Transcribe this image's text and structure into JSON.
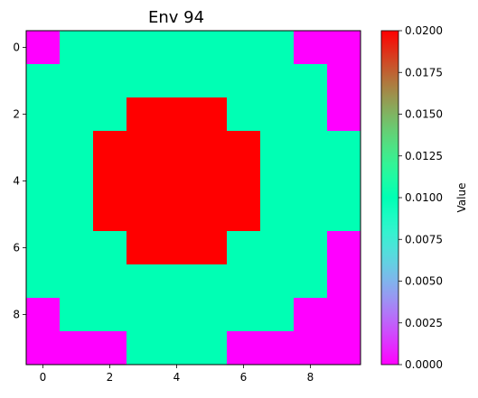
{
  "colors": {
    "zero": "#7f00ff",
    "mid": "#80ffb4",
    "high": "#ff0000",
    "axis": "#000000",
    "background": "#ffffff"
  },
  "colormap": "rainbow",
  "chart_data": {
    "type": "heatmap",
    "title": "Env 94",
    "xlabel": "",
    "ylabel": "",
    "x_ticks": [
      "0",
      "2",
      "4",
      "6",
      "8"
    ],
    "y_ticks": [
      "0",
      "2",
      "4",
      "6",
      "8"
    ],
    "xlim": [
      -0.5,
      9.5
    ],
    "ylim": [
      9.5,
      -0.5
    ],
    "grid": false,
    "colorbar": {
      "label": "Value",
      "range": [
        0.0,
        0.02
      ],
      "ticks": [
        "0.0000",
        "0.0025",
        "0.0050",
        "0.0075",
        "0.0100",
        "0.0125",
        "0.0150",
        "0.0175",
        "0.0200"
      ]
    },
    "values": [
      [
        0.0,
        0.01,
        0.01,
        0.01,
        0.01,
        0.01,
        0.01,
        0.01,
        0.0,
        0.0
      ],
      [
        0.01,
        0.01,
        0.01,
        0.01,
        0.01,
        0.01,
        0.01,
        0.01,
        0.01,
        0.0
      ],
      [
        0.01,
        0.01,
        0.01,
        0.02,
        0.02,
        0.02,
        0.01,
        0.01,
        0.01,
        0.0
      ],
      [
        0.01,
        0.01,
        0.02,
        0.02,
        0.02,
        0.02,
        0.02,
        0.01,
        0.01,
        0.01
      ],
      [
        0.01,
        0.01,
        0.02,
        0.02,
        0.02,
        0.02,
        0.02,
        0.01,
        0.01,
        0.01
      ],
      [
        0.01,
        0.01,
        0.02,
        0.02,
        0.02,
        0.02,
        0.02,
        0.01,
        0.01,
        0.01
      ],
      [
        0.01,
        0.01,
        0.01,
        0.02,
        0.02,
        0.02,
        0.01,
        0.01,
        0.01,
        0.0
      ],
      [
        0.01,
        0.01,
        0.01,
        0.01,
        0.01,
        0.01,
        0.01,
        0.01,
        0.01,
        0.0
      ],
      [
        0.0,
        0.01,
        0.01,
        0.01,
        0.01,
        0.01,
        0.01,
        0.01,
        0.0,
        0.0
      ],
      [
        0.0,
        0.0,
        0.0,
        0.01,
        0.01,
        0.01,
        0.0,
        0.0,
        0.0,
        0.0
      ]
    ]
  }
}
